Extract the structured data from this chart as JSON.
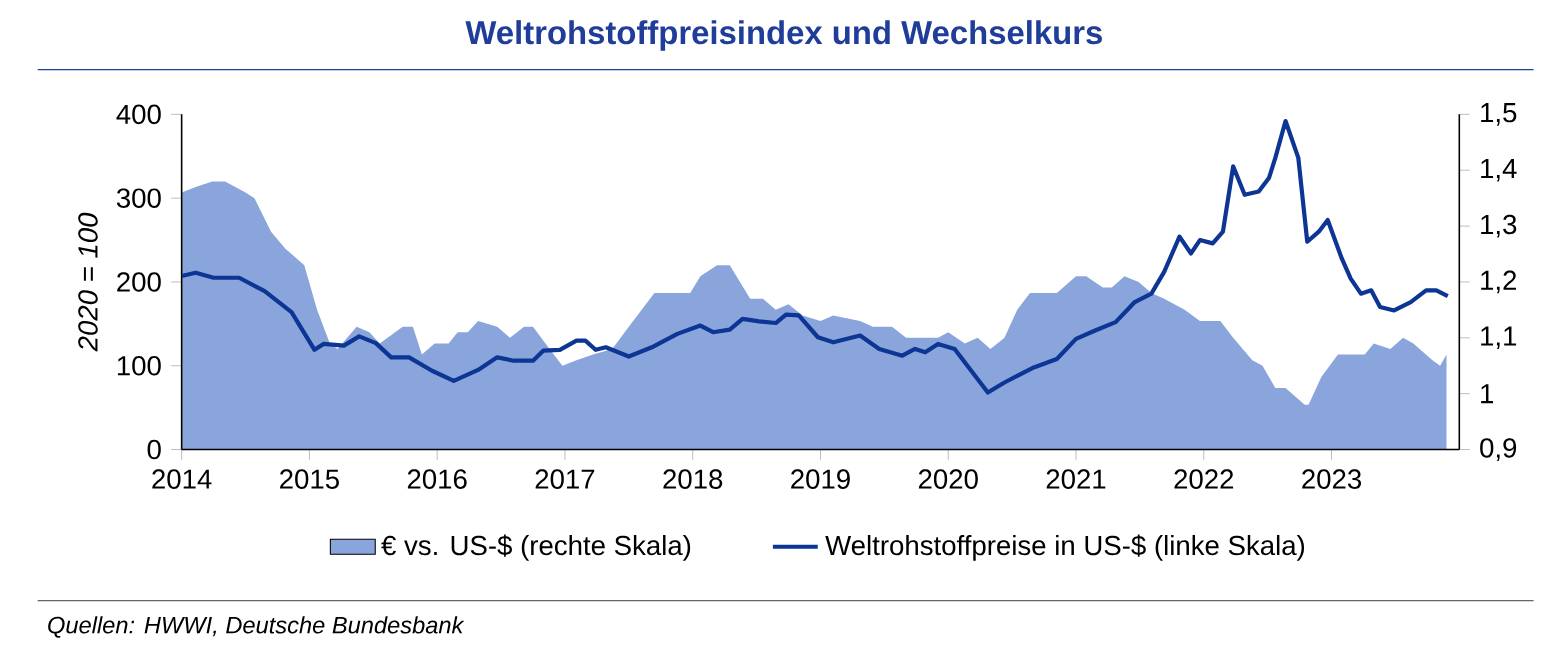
{
  "chart_data": {
    "type": "line",
    "title": "Weltrohstoffpreisindex und Wechselkurs",
    "ylabel": "2020 = 100",
    "xlim": [
      2014,
      2024
    ],
    "xticks": [
      2014,
      2015,
      2016,
      2017,
      2018,
      2019,
      2020,
      2021,
      2022,
      2023
    ],
    "ylim": [
      0,
      400
    ],
    "yticks": [
      0,
      100,
      200,
      300,
      400
    ],
    "y2lim": [
      0.9,
      1.5
    ],
    "y2ticks": [
      {
        "value": 0.9,
        "label": "0,9"
      },
      1,
      {
        "value": 1.1,
        "label": "1,1"
      },
      {
        "value": 1.2,
        "label": "1,2"
      },
      {
        "value": 1.3,
        "label": "1,3"
      },
      {
        "value": 1.4,
        "label": "1,4"
      },
      {
        "value": 1.5,
        "label": "1,5"
      }
    ],
    "legend": "bottom",
    "annotations": [
      "Quellen: HWWI, Deutsche Bundesbank"
    ],
    "series": [
      {
        "name": "€ vs. US-$ (rechte Skala)",
        "type": "area",
        "axis": "y2",
        "color": "#8aa5dc",
        "x": [
          2014.0,
          2014.11,
          2014.24,
          2014.34,
          2014.5,
          2014.57,
          2014.7,
          2014.81,
          2014.96,
          2015.06,
          2015.16,
          2015.22,
          2015.37,
          2015.47,
          2015.55,
          2015.73,
          2015.81,
          2015.88,
          2015.98,
          2016.09,
          2016.16,
          2016.24,
          2016.32,
          2016.47,
          2016.57,
          2016.68,
          2016.75,
          2016.88,
          2016.98,
          2017.09,
          2017.22,
          2017.37,
          2017.5,
          2017.7,
          2017.78,
          2017.88,
          2017.98,
          2018.06,
          2018.19,
          2018.29,
          2018.45,
          2018.55,
          2018.65,
          2018.75,
          2018.86,
          2019.0,
          2019.1,
          2019.31,
          2019.41,
          2019.56,
          2019.67,
          2019.74,
          2019.82,
          2019.92,
          2020.0,
          2020.13,
          2020.23,
          2020.33,
          2020.44,
          2020.54,
          2020.64,
          2020.77,
          2020.85,
          2021.0,
          2021.08,
          2021.21,
          2021.28,
          2021.38,
          2021.49,
          2021.59,
          2021.69,
          2021.85,
          2021.97,
          2022.13,
          2022.23,
          2022.38,
          2022.46,
          2022.56,
          2022.64,
          2022.79,
          2022.82,
          2022.92,
          2023.05,
          2023.15,
          2023.26,
          2023.33,
          2023.46,
          2023.56,
          2023.64,
          2023.79,
          2023.85,
          2023.9
        ],
        "values": [
          1.36,
          1.37,
          1.38,
          1.38,
          1.36,
          1.35,
          1.29,
          1.26,
          1.23,
          1.15,
          1.09,
          1.08,
          1.12,
          1.11,
          1.09,
          1.12,
          1.12,
          1.07,
          1.09,
          1.09,
          1.11,
          1.11,
          1.13,
          1.12,
          1.1,
          1.12,
          1.12,
          1.08,
          1.05,
          1.06,
          1.07,
          1.08,
          1.12,
          1.18,
          1.18,
          1.18,
          1.18,
          1.21,
          1.23,
          1.23,
          1.17,
          1.17,
          1.15,
          1.16,
          1.14,
          1.13,
          1.14,
          1.13,
          1.12,
          1.12,
          1.1,
          1.1,
          1.1,
          1.1,
          1.11,
          1.09,
          1.1,
          1.08,
          1.1,
          1.15,
          1.18,
          1.18,
          1.18,
          1.21,
          1.21,
          1.19,
          1.19,
          1.21,
          1.2,
          1.18,
          1.17,
          1.15,
          1.13,
          1.13,
          1.1,
          1.06,
          1.05,
          1.01,
          1.01,
          0.98,
          0.98,
          1.03,
          1.07,
          1.07,
          1.07,
          1.09,
          1.08,
          1.1,
          1.09,
          1.06,
          1.05,
          1.07
        ]
      },
      {
        "name": "Weltrohstoffpreise in US-$ (linke Skala)",
        "color": "#0d3594",
        "x": [
          2014.0,
          2014.11,
          2014.25,
          2014.45,
          2014.65,
          2014.86,
          2015.04,
          2015.11,
          2015.27,
          2015.39,
          2015.52,
          2015.64,
          2015.78,
          2015.96,
          2016.13,
          2016.32,
          2016.47,
          2016.6,
          2016.75,
          2016.83,
          2016.96,
          2017.09,
          2017.16,
          2017.24,
          2017.32,
          2017.5,
          2017.68,
          2017.88,
          2018.06,
          2018.16,
          2018.29,
          2018.39,
          2018.52,
          2018.65,
          2018.73,
          2018.83,
          2018.98,
          2019.1,
          2019.31,
          2019.46,
          2019.64,
          2019.74,
          2019.82,
          2019.92,
          2020.05,
          2020.15,
          2020.31,
          2020.44,
          2020.54,
          2020.67,
          2020.85,
          2021.0,
          2021.15,
          2021.31,
          2021.46,
          2021.59,
          2021.69,
          2021.81,
          2021.9,
          2021.97,
          2022.07,
          2022.15,
          2022.23,
          2022.32,
          2022.43,
          2022.51,
          2022.56,
          2022.64,
          2022.74,
          2022.81,
          2022.9,
          2022.97,
          2023.08,
          2023.15,
          2023.23,
          2023.31,
          2023.38,
          2023.49,
          2023.62,
          2023.74,
          2023.82,
          2023.91
        ],
        "values": [
          207,
          211,
          205,
          205,
          189,
          164,
          119,
          126,
          124,
          135,
          127,
          110,
          110,
          94,
          82,
          95,
          110,
          106,
          106,
          118,
          119,
          130,
          130,
          119,
          122,
          111,
          122,
          138,
          148,
          140,
          143,
          156,
          153,
          151,
          161,
          160,
          134,
          128,
          136,
          120,
          112,
          120,
          116,
          126,
          120,
          100,
          68,
          80,
          88,
          98,
          108,
          132,
          142,
          152,
          176,
          186,
          212,
          254,
          234,
          250,
          246,
          260,
          338,
          304,
          308,
          324,
          348,
          392,
          348,
          248,
          260,
          274,
          228,
          204,
          186,
          190,
          170,
          166,
          176,
          190,
          190,
          183
        ]
      }
    ]
  }
}
